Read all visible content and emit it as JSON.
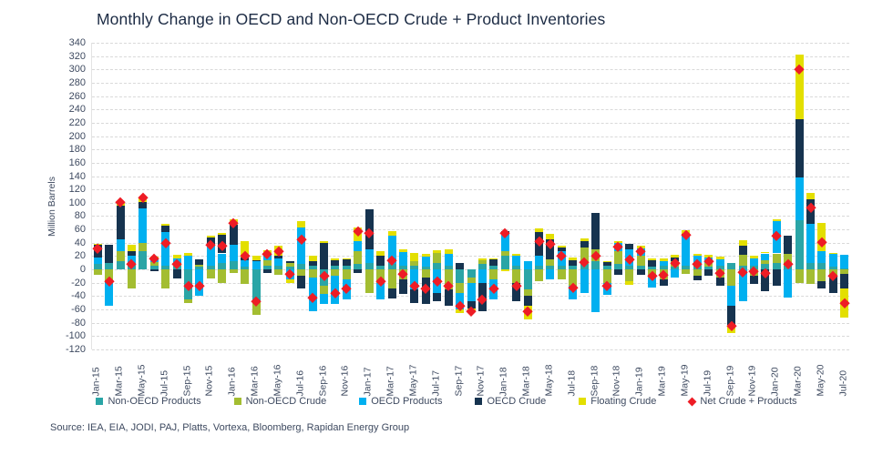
{
  "title": "Monthly Change in OECD and Non-OECD Crude + Product Inventories",
  "source": "Source: IEA, EIA, JODI, PAJ, Platts, Vortexa, Bloomberg, Rapidan Energy Group",
  "chart_data": {
    "type": "bar",
    "stacked": true,
    "title": "Monthly Change in OECD and Non-OECD Crude + Product Inventories",
    "xlabel": "",
    "ylabel": "Million Barrels",
    "ylim": [
      -120,
      340
    ],
    "ytick_step": 20,
    "grid": "horizontal-dashed",
    "legend_position": "bottom",
    "xtick_every": 2,
    "categories": [
      "Jan-15",
      "Feb-15",
      "Mar-15",
      "Apr-15",
      "May-15",
      "Jun-15",
      "Jul-15",
      "Aug-15",
      "Sep-15",
      "Oct-15",
      "Nov-15",
      "Dec-15",
      "Jan-16",
      "Feb-16",
      "Mar-16",
      "Apr-16",
      "May-16",
      "Jun-16",
      "Jul-16",
      "Aug-16",
      "Sep-16",
      "Oct-16",
      "Nov-16",
      "Dec-16",
      "Jan-17",
      "Feb-17",
      "Mar-17",
      "Apr-17",
      "May-17",
      "Jun-17",
      "Jul-17",
      "Aug-17",
      "Sep-17",
      "Oct-17",
      "Nov-17",
      "Dec-17",
      "Jan-18",
      "Feb-18",
      "Mar-18",
      "Apr-18",
      "May-18",
      "Jun-18",
      "Jul-18",
      "Aug-18",
      "Sep-18",
      "Oct-18",
      "Nov-18",
      "Dec-18",
      "Jan-19",
      "Feb-19",
      "Mar-19",
      "Apr-19",
      "May-19",
      "Jun-19",
      "Jul-19",
      "Aug-19",
      "Sep-19",
      "Oct-19",
      "Nov-19",
      "Dec-19",
      "Jan-20",
      "Feb-20",
      "Mar-20",
      "Apr-20",
      "May-20",
      "Jun-20",
      "Jul-20"
    ],
    "series": [
      {
        "name": "Non-OECD Products",
        "color": "#2aa5a6",
        "values": [
          8,
          9,
          12,
          8,
          27,
          5,
          6,
          5,
          -45,
          4,
          6,
          10,
          12,
          4,
          -48,
          6,
          5,
          4,
          8,
          5,
          -25,
          6,
          5,
          8,
          10,
          5,
          8,
          6,
          5,
          4,
          10,
          5,
          -20,
          -12,
          8,
          5,
          20,
          6,
          -30,
          6,
          5,
          5,
          6,
          8,
          12,
          5,
          8,
          5,
          6,
          4,
          5,
          4,
          6,
          5,
          4,
          5,
          10,
          6,
          5,
          8,
          10,
          5,
          74,
          10,
          9,
          4,
          2
        ]
      },
      {
        "name": "Non-OECD Crude",
        "color": "#a3bd31",
        "values": [
          -8,
          -18,
          15,
          -29,
          13,
          6,
          -28,
          4,
          -5,
          3,
          -13,
          -20,
          -5,
          -22,
          -20,
          8,
          -8,
          6,
          -10,
          -12,
          -12,
          -10,
          -15,
          20,
          -35,
          -20,
          -28,
          -15,
          8,
          -12,
          15,
          -30,
          -15,
          -8,
          6,
          -15,
          8,
          -20,
          -10,
          -18,
          10,
          -15,
          -25,
          25,
          18,
          -20,
          20,
          -18,
          15,
          -12,
          -15,
          8,
          -7,
          -10,
          6,
          -12,
          -25,
          16,
          -10,
          6,
          14,
          18,
          -21,
          -22,
          -17,
          -10,
          -7
        ]
      },
      {
        "name": "OECD Products",
        "color": "#00b0f0",
        "values": [
          10,
          -37,
          18,
          12,
          51,
          5,
          50,
          7,
          20,
          -40,
          30,
          14,
          25,
          10,
          12,
          10,
          12,
          -15,
          55,
          -50,
          -15,
          -42,
          -30,
          15,
          20,
          -25,
          42,
          20,
          -30,
          15,
          -35,
          18,
          -25,
          -28,
          -20,
          -30,
          25,
          15,
          12,
          15,
          -15,
          22,
          -20,
          -35,
          -64,
          -18,
          12,
          25,
          10,
          -15,
          8,
          -12,
          45,
          15,
          8,
          10,
          -30,
          -48,
          12,
          10,
          48,
          -42,
          64,
          59,
          18,
          19,
          20
        ]
      },
      {
        "name": "OECD Crude",
        "color": "#16334f",
        "values": [
          20,
          28,
          51,
          8,
          10,
          -2,
          10,
          -14,
          0,
          8,
          12,
          28,
          30,
          4,
          2,
          -5,
          4,
          3,
          -18,
          8,
          40,
          8,
          10,
          -5,
          60,
          15,
          -15,
          -22,
          -20,
          -40,
          -12,
          -25,
          10,
          -10,
          -42,
          10,
          5,
          -28,
          -15,
          35,
          30,
          6,
          8,
          10,
          55,
          6,
          -8,
          8,
          -8,
          10,
          -10,
          6,
          3,
          -6,
          -10,
          -12,
          -28,
          14,
          -12,
          -32,
          -25,
          27,
          87,
          36,
          -12,
          -25,
          -22
        ]
      },
      {
        "name": "Floating Crude",
        "color": "#e3df00",
        "values": [
          1,
          0,
          5,
          9,
          7,
          3,
          2,
          6,
          5,
          0,
          2,
          3,
          8,
          25,
          6,
          5,
          15,
          -5,
          10,
          7,
          2,
          3,
          2,
          20,
          0,
          8,
          7,
          4,
          12,
          5,
          4,
          7,
          -5,
          -4,
          3,
          2,
          -3,
          2,
          -20,
          5,
          8,
          3,
          4,
          3,
          0,
          2,
          2,
          -5,
          5,
          3,
          4,
          4,
          5,
          4,
          4,
          4,
          -12,
          8,
          3,
          2,
          3,
          0,
          97,
          10,
          43,
          2,
          -43
        ]
      }
    ],
    "marker_series": {
      "name": "Net Crude + Products",
      "color": "#ee1c25",
      "marker": "diamond",
      "definition": "sum of all stacked series per month"
    }
  }
}
